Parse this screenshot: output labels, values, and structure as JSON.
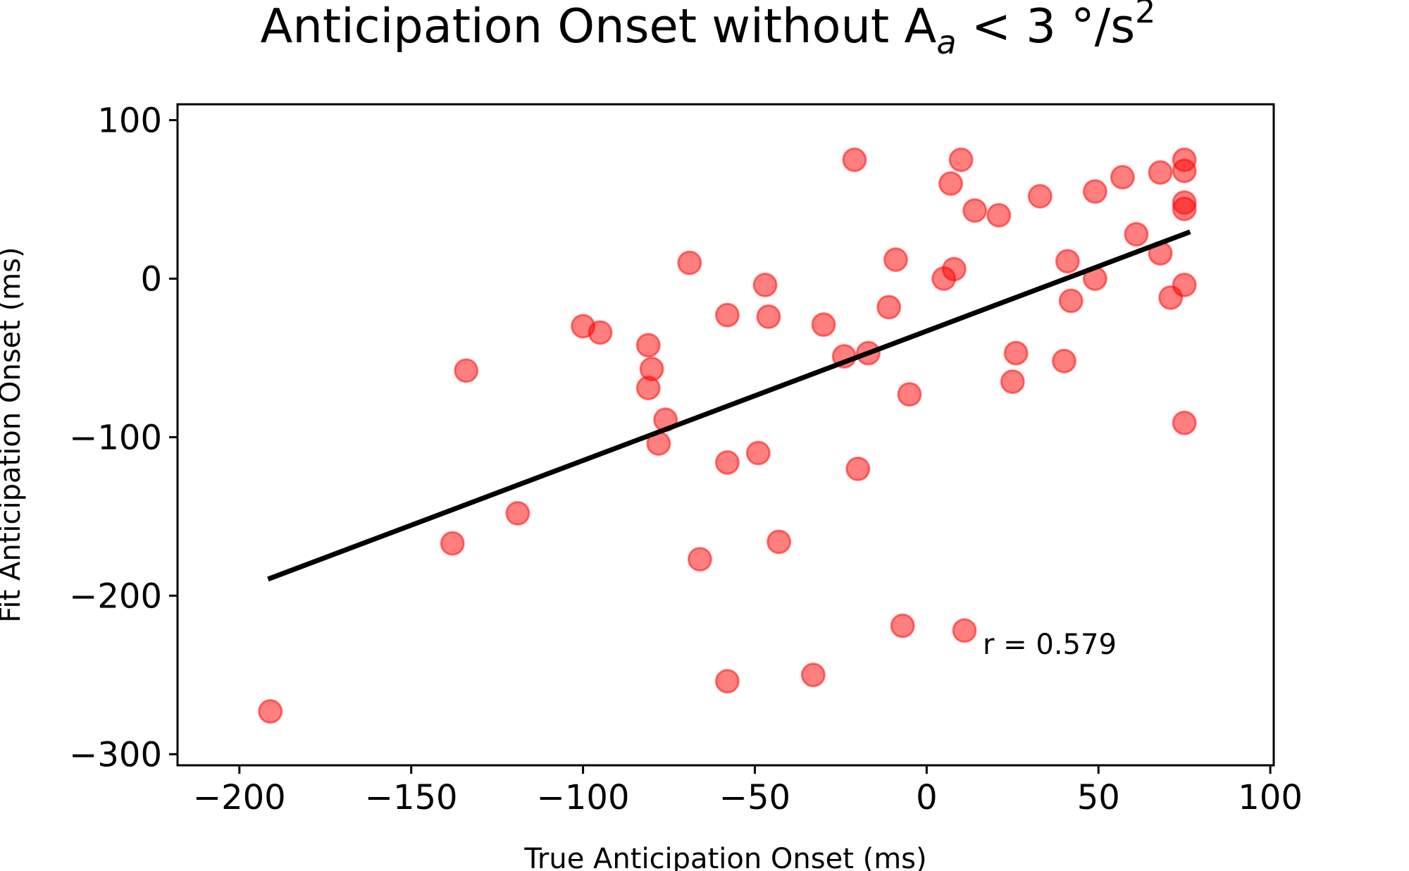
{
  "chart_data": {
    "type": "scatter",
    "title_main": "Anticipation Onset without A",
    "title_sub": "a",
    "title_rel": " < 3 °/s",
    "title_sup": "2",
    "xlabel": "True Anticipation Onset (ms)",
    "ylabel": "Fit Anticipation Onset (ms)",
    "xlim": [
      -218,
      101
    ],
    "ylim": [
      -307,
      110
    ],
    "xticks": [
      -200,
      -150,
      -100,
      -50,
      0,
      50,
      100
    ],
    "xtick_labels": [
      "−200",
      "−150",
      "−100",
      "−50",
      "0",
      "50",
      "100"
    ],
    "yticks": [
      -300,
      -200,
      -100,
      0,
      100
    ],
    "ytick_labels": [
      "−300",
      "−200",
      "−100",
      "0",
      "100"
    ],
    "grid": false,
    "annotation": "r = 0.579",
    "marker_color": "#ff0000",
    "marker_alpha": 0.5,
    "line_color": "#000000",
    "fit_line": {
      "x": [
        -191,
        76
      ],
      "y": [
        -189,
        29
      ]
    },
    "points": [
      {
        "x": -191,
        "y": -273
      },
      {
        "x": -138,
        "y": -167
      },
      {
        "x": -134,
        "y": -58
      },
      {
        "x": -119,
        "y": -148
      },
      {
        "x": -100,
        "y": -30
      },
      {
        "x": -95,
        "y": -34
      },
      {
        "x": -81,
        "y": -42
      },
      {
        "x": -80,
        "y": -57
      },
      {
        "x": -81,
        "y": -69
      },
      {
        "x": -76,
        "y": -89
      },
      {
        "x": -78,
        "y": -104
      },
      {
        "x": -69,
        "y": 10
      },
      {
        "x": -66,
        "y": -177
      },
      {
        "x": -58,
        "y": -23
      },
      {
        "x": -58,
        "y": -116
      },
      {
        "x": -58,
        "y": -254
      },
      {
        "x": -49,
        "y": -110
      },
      {
        "x": -47,
        "y": -4
      },
      {
        "x": -46,
        "y": -24
      },
      {
        "x": -43,
        "y": -166
      },
      {
        "x": -33,
        "y": -250
      },
      {
        "x": -30,
        "y": -29
      },
      {
        "x": -24,
        "y": -49
      },
      {
        "x": -21,
        "y": 75
      },
      {
        "x": -20,
        "y": -120
      },
      {
        "x": -17,
        "y": -47
      },
      {
        "x": -11,
        "y": -18
      },
      {
        "x": -9,
        "y": 12
      },
      {
        "x": -7,
        "y": -219
      },
      {
        "x": -5,
        "y": -73
      },
      {
        "x": 5,
        "y": 0
      },
      {
        "x": 7,
        "y": 60
      },
      {
        "x": 8,
        "y": 6
      },
      {
        "x": 10,
        "y": 75
      },
      {
        "x": 11,
        "y": -222
      },
      {
        "x": 14,
        "y": 43
      },
      {
        "x": 21,
        "y": 40
      },
      {
        "x": 25,
        "y": -65
      },
      {
        "x": 26,
        "y": -47
      },
      {
        "x": 33,
        "y": 52
      },
      {
        "x": 40,
        "y": -52
      },
      {
        "x": 41,
        "y": 11
      },
      {
        "x": 42,
        "y": -14
      },
      {
        "x": 49,
        "y": 55
      },
      {
        "x": 49,
        "y": 0
      },
      {
        "x": 57,
        "y": 64
      },
      {
        "x": 61,
        "y": 28
      },
      {
        "x": 68,
        "y": 67
      },
      {
        "x": 68,
        "y": 16
      },
      {
        "x": 71,
        "y": -12
      },
      {
        "x": 75,
        "y": 75
      },
      {
        "x": 75,
        "y": 68
      },
      {
        "x": 75,
        "y": 48
      },
      {
        "x": 75,
        "y": 44
      },
      {
        "x": 75,
        "y": -4
      },
      {
        "x": 75,
        "y": -91
      }
    ]
  }
}
